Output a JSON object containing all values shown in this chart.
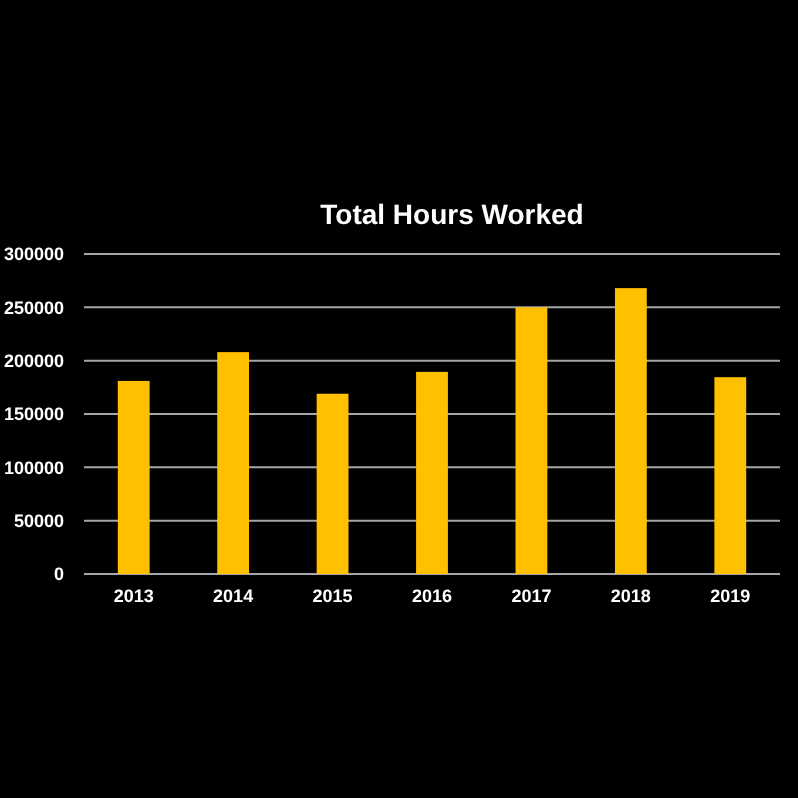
{
  "chart_data": {
    "type": "bar",
    "title": "Total Hours Worked",
    "categories": [
      "2013",
      "2014",
      "2015",
      "2016",
      "2017",
      "2018",
      "2019"
    ],
    "values": [
      181000,
      208000,
      169000,
      189500,
      250000,
      268000,
      184500
    ],
    "color": "#ffc000",
    "ylim": [
      0,
      300000
    ],
    "yticks": [
      0,
      50000,
      100000,
      150000,
      200000,
      250000,
      300000
    ],
    "grid": "y"
  }
}
